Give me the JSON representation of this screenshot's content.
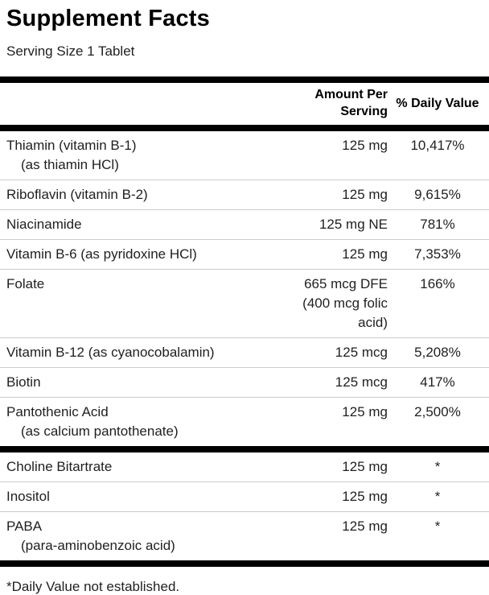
{
  "panel": {
    "title": "Supplement Facts",
    "serving_size": "Serving Size 1 Tablet",
    "columns": {
      "amount": "Amount Per Serving",
      "dv": "% Daily Value"
    },
    "sections": [
      {
        "rows": [
          {
            "name": "Thiamin (vitamin B-1)",
            "sub": "(as thiamin HCl)",
            "amount": "125 mg",
            "dv": "10,417%"
          },
          {
            "name": "Riboflavin (vitamin B-2)",
            "sub": "",
            "amount": "125 mg",
            "dv": "9,615%"
          },
          {
            "name": "Niacinamide",
            "sub": "",
            "amount": "125 mg NE",
            "dv": "781%"
          },
          {
            "name": "Vitamin B-6 (as pyridoxine HCl)",
            "sub": "",
            "amount": "125 mg",
            "dv": "7,353%"
          },
          {
            "name": "Folate",
            "sub": "",
            "amount": "665 mcg DFE (400 mcg folic acid)",
            "dv": "166%"
          },
          {
            "name": "Vitamin B-12 (as cyanocobalamin)",
            "sub": "",
            "amount": "125 mcg",
            "dv": "5,208%"
          },
          {
            "name": "Biotin",
            "sub": "",
            "amount": "125 mcg",
            "dv": "417%"
          },
          {
            "name": "Pantothenic Acid",
            "sub": "(as calcium pantothenate)",
            "amount": "125 mg",
            "dv": "2,500%"
          }
        ]
      },
      {
        "rows": [
          {
            "name": "Choline Bitartrate",
            "sub": "",
            "amount": "125 mg",
            "dv": "*"
          },
          {
            "name": "Inositol",
            "sub": "",
            "amount": "125 mg",
            "dv": "*"
          },
          {
            "name": "PABA",
            "sub": "(para-aminobenzoic acid)",
            "amount": "125 mg",
            "dv": "*"
          }
        ]
      }
    ],
    "footnote": "*Daily Value not established.",
    "colors": {
      "bar": "#000000",
      "row_divider": "#cccccc",
      "text": "#1f1f1f"
    }
  }
}
